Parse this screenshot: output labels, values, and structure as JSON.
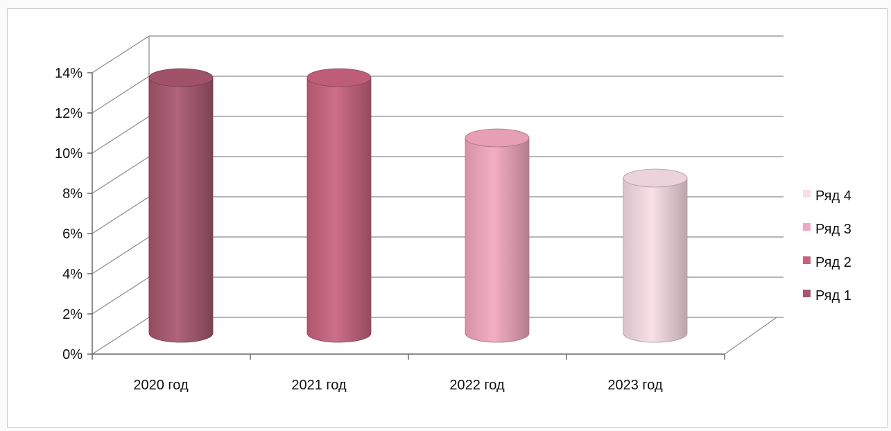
{
  "chart_data": {
    "type": "bar",
    "style": "3d-cylinder",
    "categories": [
      "2020 год",
      "2021 год",
      "2022 год",
      "2023 год"
    ],
    "series": [
      {
        "name": "Ряд 1",
        "color": "#a8566e",
        "values": [
          0.13,
          null,
          null,
          null
        ]
      },
      {
        "name": "Ряд 2",
        "color": "#c8627e",
        "values": [
          null,
          0.13,
          null,
          null
        ]
      },
      {
        "name": "Ряд 3",
        "color": "#f2a7bd",
        "values": [
          null,
          null,
          0.1,
          null
        ]
      },
      {
        "name": "Ряд 4",
        "color": "#f8dde5",
        "values": [
          null,
          null,
          null,
          0.08
        ]
      }
    ],
    "ylim": [
      0,
      0.14
    ],
    "yticks": [
      0,
      0.02,
      0.04,
      0.06,
      0.08,
      0.1,
      0.12,
      0.14
    ],
    "ytick_labels": [
      "0%",
      "2%",
      "4%",
      "6%",
      "8%",
      "10%",
      "12%",
      "14%"
    ],
    "grid": true,
    "legend": {
      "placement": "right",
      "order": [
        "Ряд 4",
        "Ряд 3",
        "Ряд 2",
        "Ряд 1"
      ]
    },
    "title": "",
    "xlabel": "",
    "ylabel": ""
  }
}
